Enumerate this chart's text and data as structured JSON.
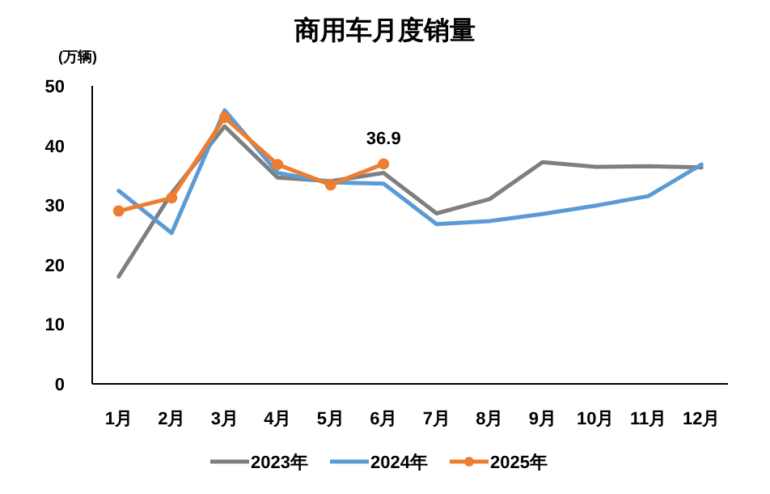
{
  "chart_data": {
    "type": "line",
    "title": "商用车月度销量",
    "ylabel": "(万辆)",
    "categories": [
      "1月",
      "2月",
      "3月",
      "4月",
      "5月",
      "6月",
      "7月",
      "8月",
      "9月",
      "10月",
      "11月",
      "12月"
    ],
    "ylim": [
      0,
      50
    ],
    "yticks": [
      0,
      10,
      20,
      30,
      40,
      50
    ],
    "grid": false,
    "legend": "bottom",
    "series": [
      {
        "name": "2023年",
        "color": "#7f7f7f",
        "marker": "none",
        "values": [
          18,
          32,
          43.2,
          34.6,
          34,
          35.4,
          28.6,
          31,
          37.2,
          36.4,
          36.5,
          36.3
        ]
      },
      {
        "name": "2024年",
        "color": "#5b9bd5",
        "marker": "none",
        "values": [
          32.4,
          25.3,
          45.9,
          35.4,
          33.8,
          33.6,
          26.8,
          27.3,
          28.5,
          29.9,
          31.5,
          36.8
        ]
      },
      {
        "name": "2025年",
        "color": "#ed7d31",
        "marker": "circle",
        "values": [
          29,
          31.2,
          44.7,
          36.8,
          33.4,
          36.9,
          null,
          null,
          null,
          null,
          null,
          null
        ],
        "value_labels": [
          null,
          null,
          null,
          null,
          null,
          "36.9",
          null,
          null,
          null,
          null,
          null,
          null
        ]
      }
    ]
  }
}
